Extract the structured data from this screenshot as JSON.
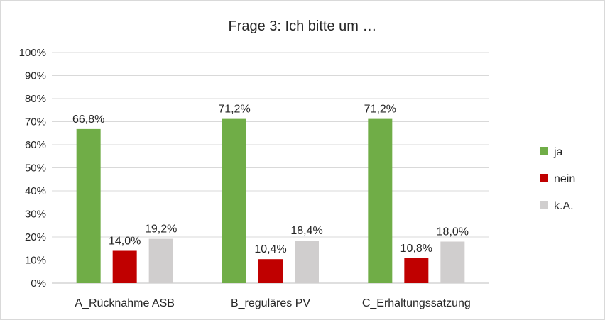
{
  "chart_data": {
    "type": "bar",
    "title": "Frage 3: Ich bitte um …",
    "xlabel": "",
    "ylabel": "",
    "categories": [
      "A_Rücknahme ASB",
      "B_reguläres PV",
      "C_Erhaltungssatzung"
    ],
    "series": [
      {
        "name": "ja",
        "color": "#70ad47",
        "values": [
          66.8,
          71.2,
          71.2
        ],
        "labels": [
          "66,8%",
          "71,2%",
          "71,2%"
        ]
      },
      {
        "name": "nein",
        "color": "#c00000",
        "values": [
          14.0,
          10.4,
          10.8
        ],
        "labels": [
          "14,0%",
          "10,4%",
          "10,8%"
        ]
      },
      {
        "name": "k.A.",
        "color": "#d0cece",
        "values": [
          19.2,
          18.4,
          18.0
        ],
        "labels": [
          "19,2%",
          "18,4%",
          "18,0%"
        ]
      }
    ],
    "ylim": [
      0,
      100
    ],
    "yticks": [
      0,
      10,
      20,
      30,
      40,
      50,
      60,
      70,
      80,
      90,
      100
    ],
    "ytick_labels": [
      "0%",
      "10%",
      "20%",
      "30%",
      "40%",
      "50%",
      "60%",
      "70%",
      "80%",
      "90%",
      "100%"
    ],
    "grid": true,
    "legend_position": "right"
  }
}
